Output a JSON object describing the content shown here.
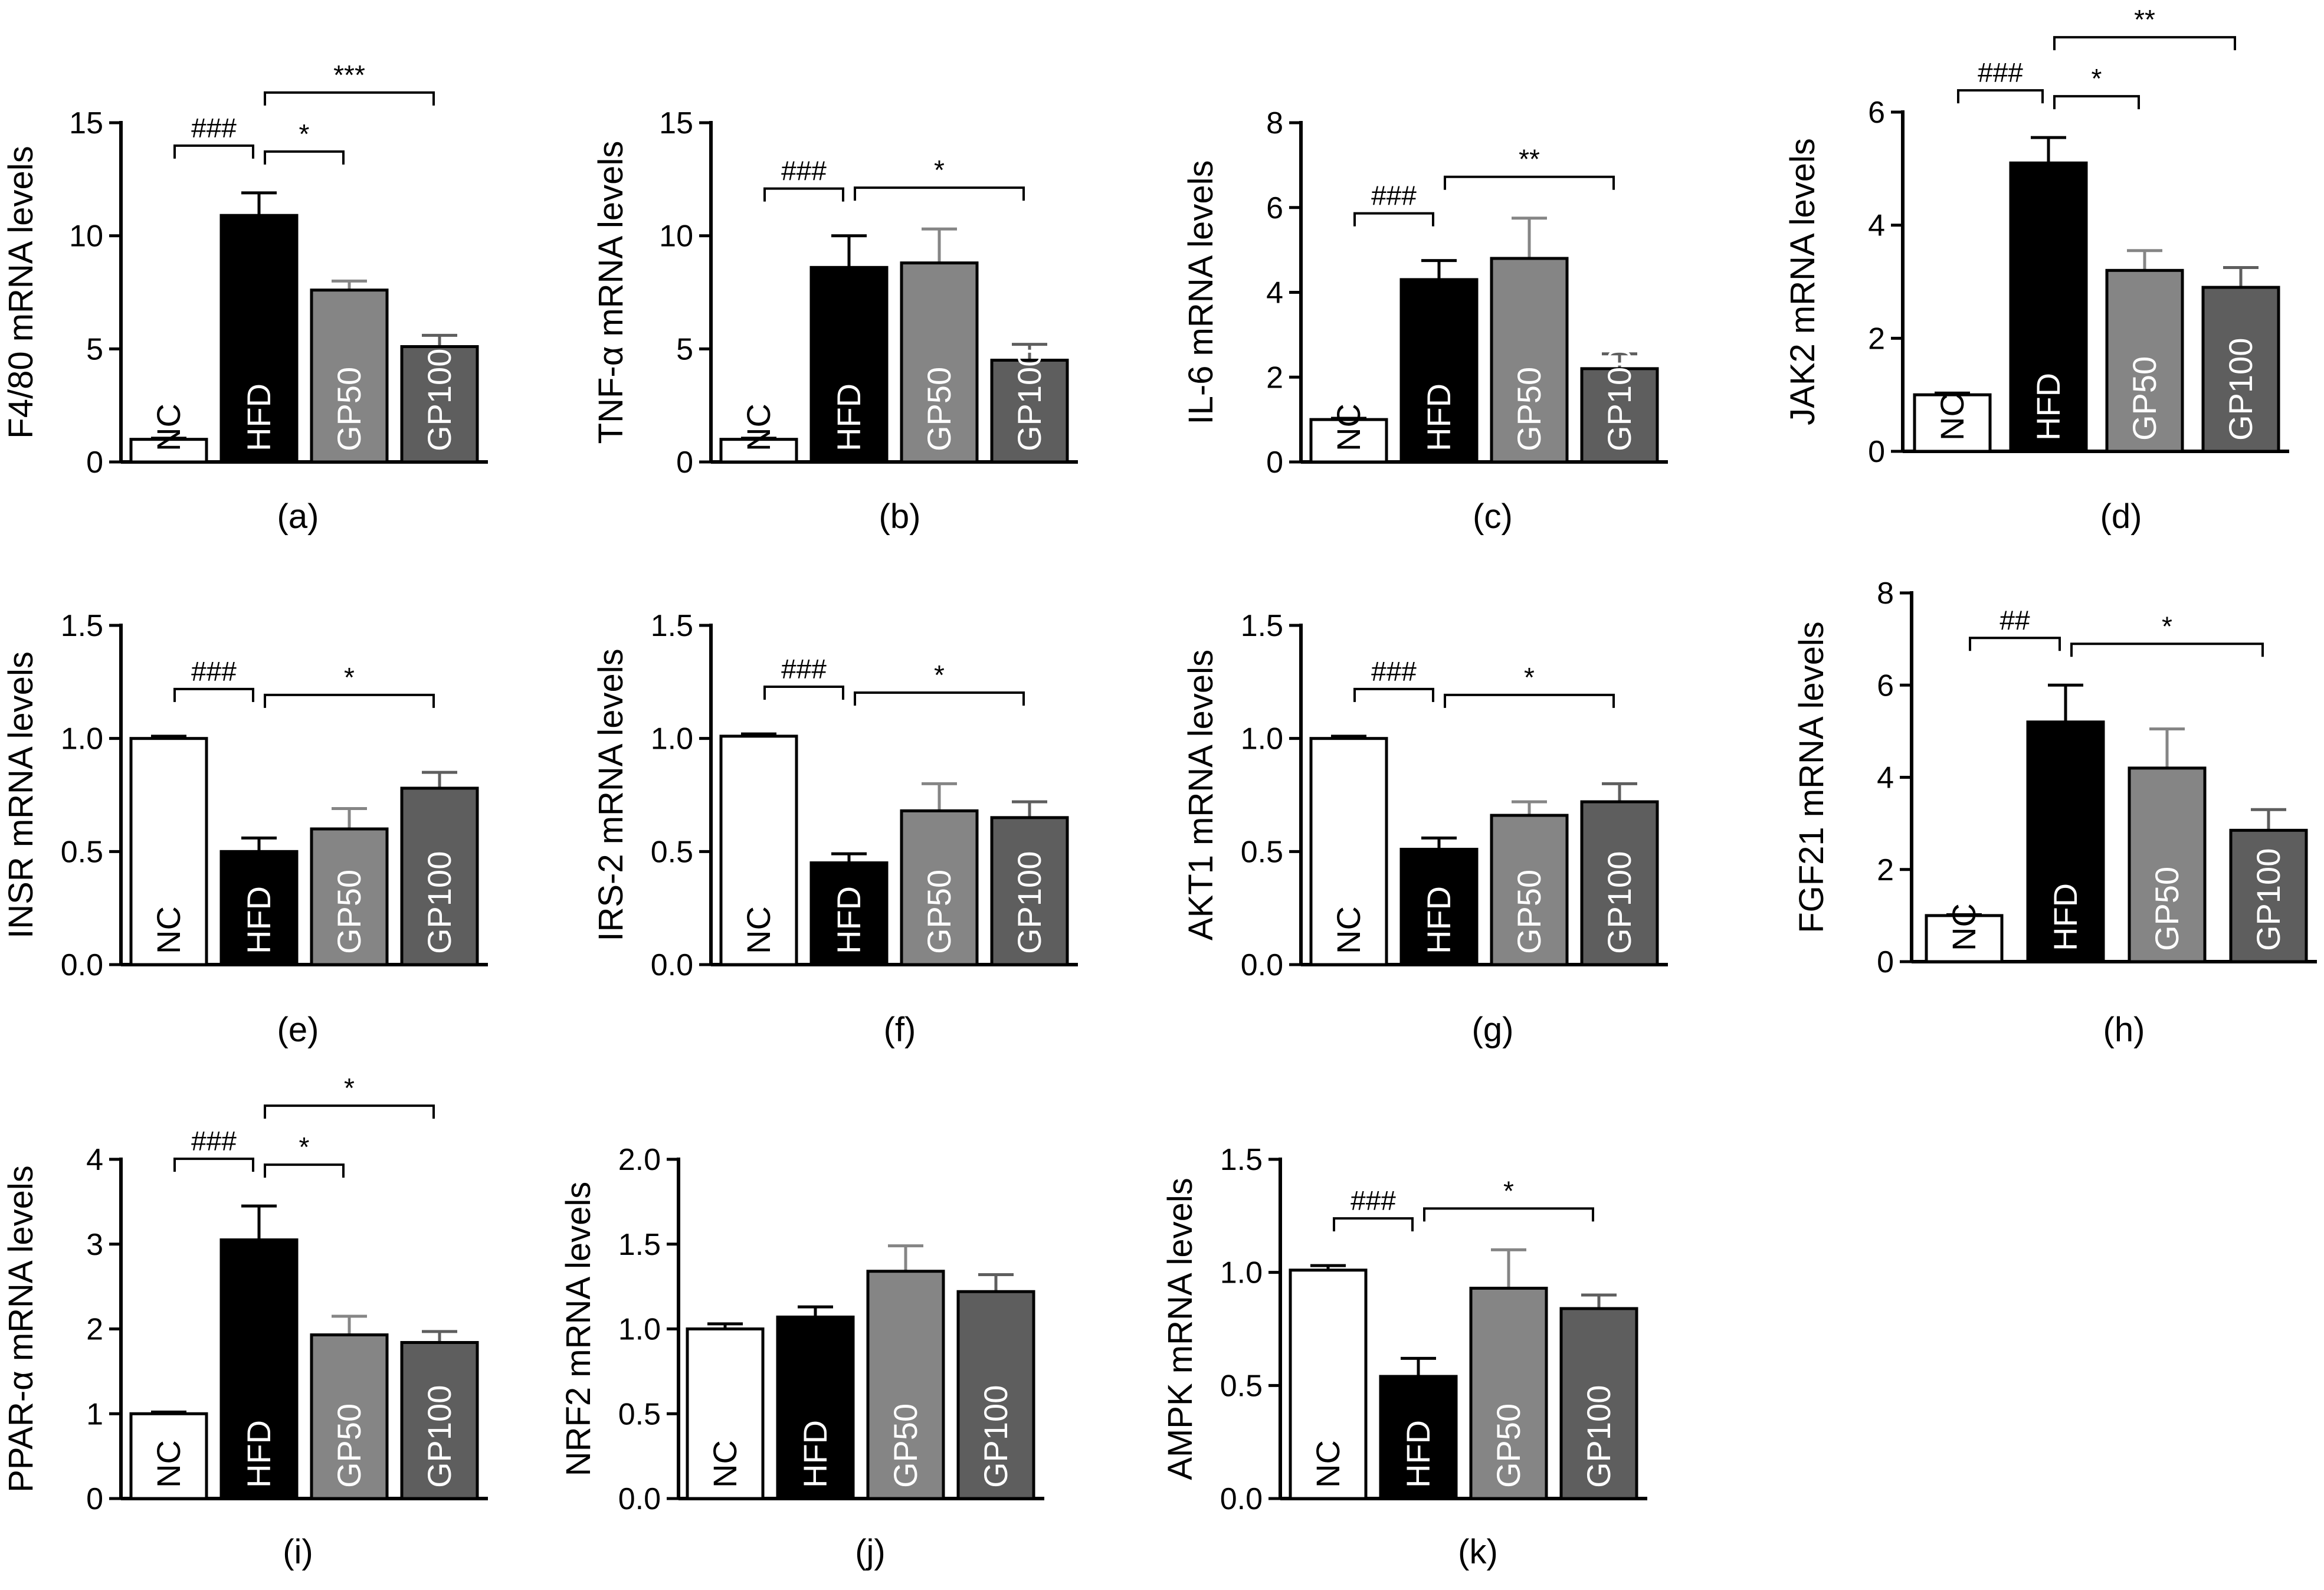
{
  "colors": {
    "NC": "#ffffff",
    "HFD": "#000000",
    "GP50": "#858585",
    "GP100": "#5e5e5e",
    "text_on_dark": "#ffffff",
    "text_on_light": "#000000"
  },
  "chart_data": [
    {
      "type": "bar",
      "panel": "(a)",
      "ylabel": "F4/80 mRNA levels",
      "categories": [
        "NC",
        "HFD",
        "GP50",
        "GP100"
      ],
      "values": [
        1.0,
        10.9,
        7.6,
        5.1
      ],
      "errors": [
        0.05,
        1.0,
        0.4,
        0.5
      ],
      "ylim": [
        0,
        15
      ],
      "yticks": [
        0,
        5,
        10,
        15
      ],
      "ytick_labels": [
        "0",
        "5",
        "10",
        "15"
      ],
      "significance": [
        {
          "from": 0,
          "to": 1,
          "label": "###"
        },
        {
          "from": 1,
          "to": 2,
          "label": "*"
        },
        {
          "from": 1,
          "to": 3,
          "label": "***"
        }
      ]
    },
    {
      "type": "bar",
      "panel": "(b)",
      "ylabel": "TNF-α mRNA levels",
      "categories": [
        "NC",
        "HFD",
        "GP50",
        "GP100"
      ],
      "values": [
        1.0,
        8.6,
        8.8,
        4.5
      ],
      "errors": [
        0.05,
        1.4,
        1.5,
        0.7
      ],
      "ylim": [
        0,
        15
      ],
      "yticks": [
        0,
        5,
        10,
        15
      ],
      "ytick_labels": [
        "0",
        "5",
        "10",
        "15"
      ],
      "significance": [
        {
          "from": 0,
          "to": 1,
          "label": "###"
        },
        {
          "from": 1,
          "to": 3,
          "label": "*"
        }
      ]
    },
    {
      "type": "bar",
      "panel": "(c)",
      "ylabel": "IL-6 mRNA levels",
      "categories": [
        "NC",
        "HFD",
        "GP50",
        "GP100"
      ],
      "values": [
        1.0,
        4.3,
        4.8,
        2.2
      ],
      "errors": [
        0.03,
        0.45,
        0.95,
        0.35
      ],
      "ylim": [
        0,
        8
      ],
      "yticks": [
        0,
        2,
        4,
        6,
        8
      ],
      "ytick_labels": [
        "0",
        "2",
        "4",
        "6",
        "8"
      ],
      "significance": [
        {
          "from": 0,
          "to": 1,
          "label": "###"
        },
        {
          "from": 1,
          "to": 3,
          "label": "**"
        }
      ]
    },
    {
      "type": "bar",
      "panel": "(d)",
      "ylabel": "JAK2 mRNA levels",
      "categories": [
        "NC",
        "HFD",
        "GP50",
        "GP100"
      ],
      "values": [
        1.0,
        5.1,
        3.2,
        2.9
      ],
      "errors": [
        0.03,
        0.45,
        0.35,
        0.35
      ],
      "ylim": [
        0,
        6
      ],
      "yticks": [
        0,
        2,
        4,
        6
      ],
      "ytick_labels": [
        "0",
        "2",
        "4",
        "6"
      ],
      "significance": [
        {
          "from": 0,
          "to": 1,
          "label": "###"
        },
        {
          "from": 1,
          "to": 2,
          "label": "*"
        },
        {
          "from": 1,
          "to": 3,
          "label": "**"
        }
      ]
    },
    {
      "type": "bar",
      "panel": "(e)",
      "ylabel": "INSR mRNA levels",
      "categories": [
        "NC",
        "HFD",
        "GP50",
        "GP100"
      ],
      "values": [
        1.0,
        0.5,
        0.6,
        0.78
      ],
      "errors": [
        0.01,
        0.06,
        0.09,
        0.07
      ],
      "ylim": [
        0,
        1.5
      ],
      "yticks": [
        0,
        0.5,
        1.0,
        1.5
      ],
      "ytick_labels": [
        "0.0",
        "0.5",
        "1.0",
        "1.5"
      ],
      "significance": [
        {
          "from": 0,
          "to": 1,
          "label": "###"
        },
        {
          "from": 1,
          "to": 3,
          "label": "*"
        }
      ]
    },
    {
      "type": "bar",
      "panel": "(f)",
      "ylabel": "IRS-2 mRNA levels",
      "categories": [
        "NC",
        "HFD",
        "GP50",
        "GP100"
      ],
      "values": [
        1.01,
        0.45,
        0.68,
        0.65
      ],
      "errors": [
        0.01,
        0.04,
        0.12,
        0.07
      ],
      "ylim": [
        0,
        1.5
      ],
      "yticks": [
        0,
        0.5,
        1.0,
        1.5
      ],
      "ytick_labels": [
        "0.0",
        "0.5",
        "1.0",
        "1.5"
      ],
      "significance": [
        {
          "from": 0,
          "to": 1,
          "label": "###"
        },
        {
          "from": 1,
          "to": 3,
          "label": "*"
        }
      ]
    },
    {
      "type": "bar",
      "panel": "(g)",
      "ylabel": "AKT1 mRNA levels",
      "categories": [
        "NC",
        "HFD",
        "GP50",
        "GP100"
      ],
      "values": [
        1.0,
        0.51,
        0.66,
        0.72
      ],
      "errors": [
        0.01,
        0.05,
        0.06,
        0.08
      ],
      "ylim": [
        0,
        1.5
      ],
      "yticks": [
        0,
        0.5,
        1.0,
        1.5
      ],
      "ytick_labels": [
        "0.0",
        "0.5",
        "1.0",
        "1.5"
      ],
      "significance": [
        {
          "from": 0,
          "to": 1,
          "label": "###"
        },
        {
          "from": 1,
          "to": 3,
          "label": "*"
        }
      ]
    },
    {
      "type": "bar",
      "panel": "(h)",
      "ylabel": "FGF21 mRNA levels",
      "categories": [
        "NC",
        "HFD",
        "GP50",
        "GP100"
      ],
      "values": [
        1.0,
        5.2,
        4.2,
        2.85
      ],
      "errors": [
        0.02,
        0.8,
        0.85,
        0.45
      ],
      "ylim": [
        0,
        8
      ],
      "yticks": [
        0,
        2,
        4,
        6,
        8
      ],
      "ytick_labels": [
        "0",
        "2",
        "4",
        "6",
        "8"
      ],
      "significance": [
        {
          "from": 0,
          "to": 1,
          "label": "##"
        },
        {
          "from": 1,
          "to": 3,
          "label": "*"
        }
      ]
    },
    {
      "type": "bar",
      "panel": "(i)",
      "ylabel": "PPAR-α mRNA levels",
      "categories": [
        "NC",
        "HFD",
        "GP50",
        "GP100"
      ],
      "values": [
        1.0,
        3.05,
        1.93,
        1.84
      ],
      "errors": [
        0.02,
        0.4,
        0.22,
        0.13
      ],
      "ylim": [
        0,
        4
      ],
      "yticks": [
        0,
        1,
        2,
        3,
        4
      ],
      "ytick_labels": [
        "0",
        "1",
        "2",
        "3",
        "4"
      ],
      "significance": [
        {
          "from": 0,
          "to": 1,
          "label": "###"
        },
        {
          "from": 1,
          "to": 2,
          "label": "*"
        },
        {
          "from": 1,
          "to": 3,
          "label": "*"
        }
      ]
    },
    {
      "type": "bar",
      "panel": "(j)",
      "ylabel": "NRF2 mRNA levels",
      "categories": [
        "NC",
        "HFD",
        "GP50",
        "GP100"
      ],
      "values": [
        1.0,
        1.07,
        1.34,
        1.22
      ],
      "errors": [
        0.03,
        0.06,
        0.15,
        0.1
      ],
      "ylim": [
        0,
        2.0
      ],
      "yticks": [
        0,
        0.5,
        1.0,
        1.5,
        2.0
      ],
      "ytick_labels": [
        "0.0",
        "0.5",
        "1.0",
        "1.5",
        "2.0"
      ],
      "significance": []
    },
    {
      "type": "bar",
      "panel": "(k)",
      "ylabel": "AMPK mRNA levels",
      "categories": [
        "NC",
        "HFD",
        "GP50",
        "GP100"
      ],
      "values": [
        1.01,
        0.54,
        0.93,
        0.84
      ],
      "errors": [
        0.02,
        0.08,
        0.17,
        0.06
      ],
      "ylim": [
        0,
        1.5
      ],
      "yticks": [
        0,
        0.5,
        1.0,
        1.5
      ],
      "ytick_labels": [
        "0.0",
        "0.5",
        "1.0",
        "1.5"
      ],
      "significance": [
        {
          "from": 0,
          "to": 1,
          "label": "###"
        },
        {
          "from": 1,
          "to": 3,
          "label": "*"
        }
      ]
    }
  ]
}
